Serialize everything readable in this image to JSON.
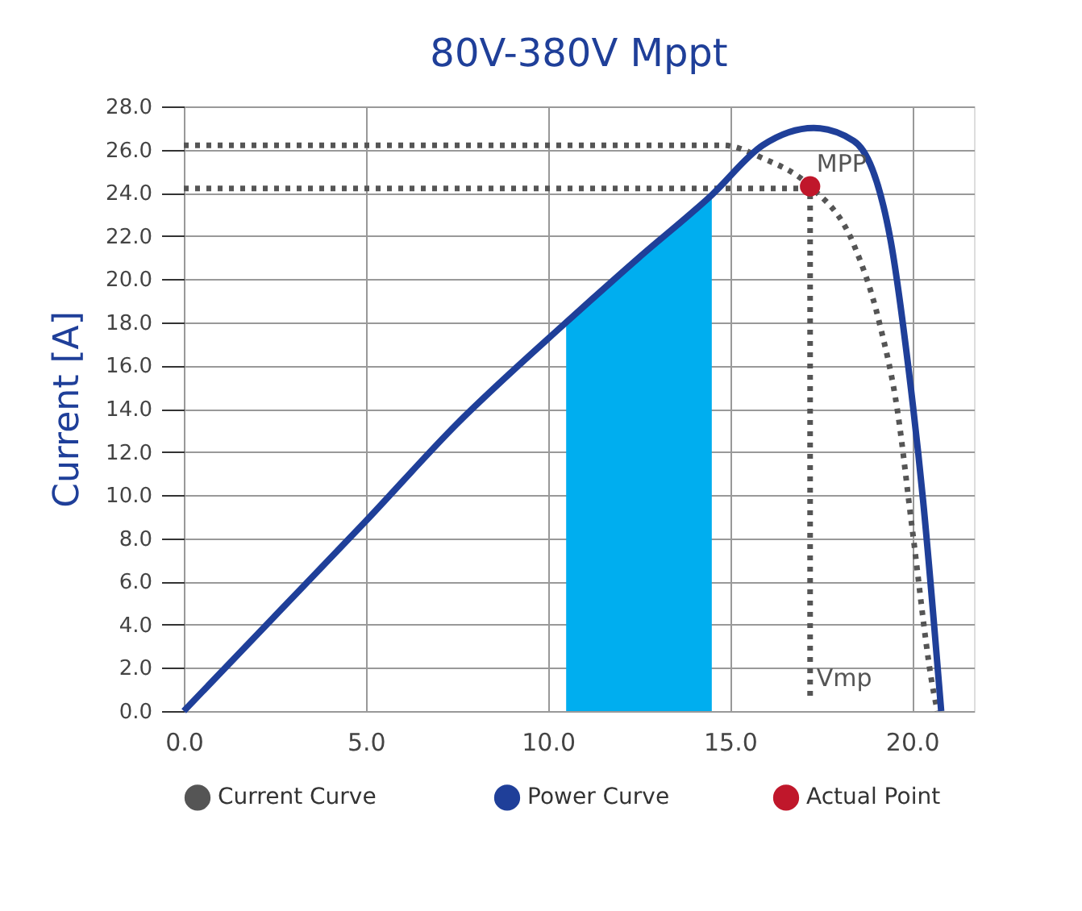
{
  "chart_data": {
    "type": "line",
    "title": "80V-380V  Mppt",
    "ylabel": "Current [A]",
    "xlim": [
      0,
      21.7
    ],
    "ylim": [
      0,
      28
    ],
    "xticks": [
      {
        "value": 0,
        "label": "0.0"
      },
      {
        "value": 5,
        "label": "5.0"
      },
      {
        "value": 10,
        "label": "10.0"
      },
      {
        "value": 15,
        "label": "15.0"
      },
      {
        "value": 20,
        "label": "20.0"
      }
    ],
    "yticks": [
      {
        "value": 0,
        "label": "0.0"
      },
      {
        "value": 2,
        "label": "2.0"
      },
      {
        "value": 4,
        "label": "4.0"
      },
      {
        "value": 6,
        "label": "6.0"
      },
      {
        "value": 8,
        "label": "8.0"
      },
      {
        "value": 10,
        "label": "10.0"
      },
      {
        "value": 12,
        "label": "12.0"
      },
      {
        "value": 14,
        "label": "14.0"
      },
      {
        "value": 16,
        "label": "16.0"
      },
      {
        "value": 18,
        "label": "18.0"
      },
      {
        "value": 20,
        "label": "20.0"
      },
      {
        "value": 22,
        "label": "22.0"
      },
      {
        "value": 24,
        "label": "24.0"
      },
      {
        "value": 26,
        "label": "26.0"
      },
      {
        "value": 28,
        "label": "28.0"
      }
    ],
    "grid": true,
    "legend": "bottom",
    "series": [
      {
        "type": "area",
        "color": "#00aeef",
        "x": [
          10.5,
          11.5,
          12.5,
          13.5,
          14.5
        ],
        "values": [
          18.0,
          19.6,
          21.0,
          22.5,
          23.9
        ]
      },
      {
        "name": "Current   Curve",
        "line_style": "dotted",
        "color": "#555555",
        "x": [
          0,
          14.8,
          15.9,
          17.2,
          18.4,
          19.1,
          19.6,
          20.0,
          20.6,
          20.7
        ],
        "values": [
          26.2,
          26.2,
          25.6,
          24.3,
          21.6,
          18.0,
          13.9,
          8.5,
          0.8,
          0
        ]
      },
      {
        "line_style": "dotted",
        "color": "#555555",
        "x": [
          0,
          17.2,
          17.2
        ],
        "values": [
          24.2,
          24.2,
          0.5
        ]
      },
      {
        "name": "Power Curve",
        "line_style": "solid",
        "color": "#1f3f99",
        "x": [
          0,
          2.5,
          5,
          7.5,
          10.5,
          12.5,
          14.5,
          15.9,
          17.3,
          18.4,
          19.4,
          19.9,
          20.3,
          20.8
        ],
        "values": [
          0,
          4.4,
          8.8,
          13.3,
          18.0,
          21.0,
          23.9,
          26.2,
          27.0,
          26.4,
          21.9,
          15.9,
          9.8,
          0
        ]
      },
      {
        "name": "Actual Point",
        "type": "scatter",
        "marker": "circle",
        "color": "#c0172b",
        "x": [
          17.2
        ],
        "values": [
          24.3
        ]
      }
    ],
    "annotations": [
      {
        "text": "MPP",
        "x": 17.2,
        "y": 24.3
      },
      {
        "text": "Vmp",
        "x": 17.2,
        "y": 0.5
      }
    ]
  }
}
